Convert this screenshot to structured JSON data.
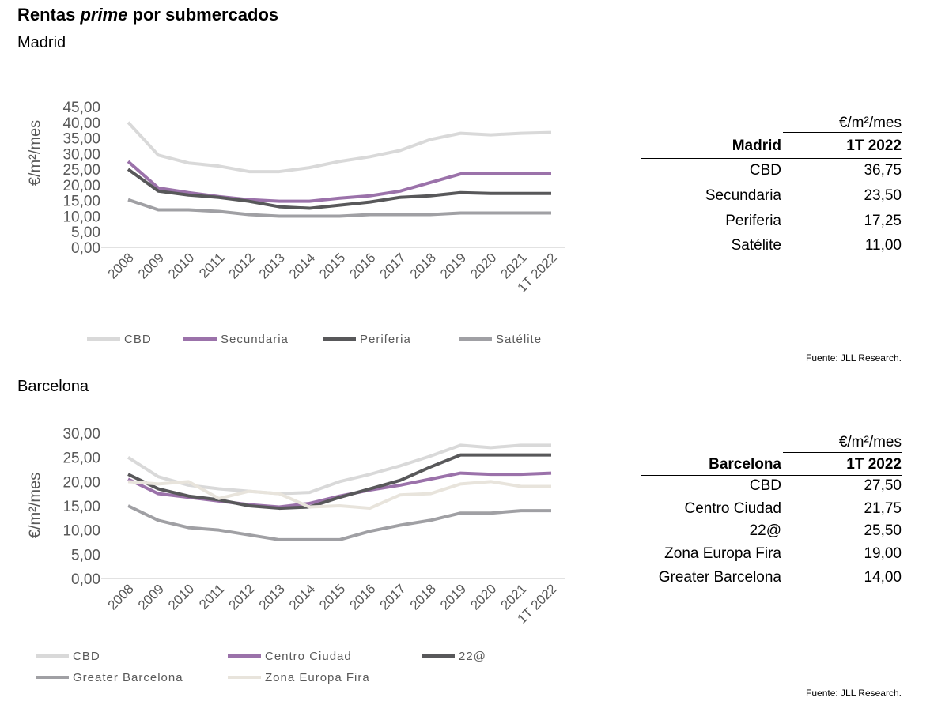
{
  "title_pre": "Rentas ",
  "title_em": "prime",
  "title_post": " por submercados",
  "chart_data": [
    {
      "type": "line",
      "subtitle": "Madrid",
      "ylabel": "€/m²/mes",
      "ylim": [
        0,
        45
      ],
      "yticks": [
        "0,00",
        "5,00",
        "10,00",
        "15,00",
        "20,00",
        "25,00",
        "30,00",
        "35,00",
        "40,00",
        "45,00"
      ],
      "categories": [
        "2008",
        "2009",
        "2010",
        "2011",
        "2012",
        "2013",
        "2014",
        "2015",
        "2016",
        "2017",
        "2018",
        "2019",
        "2020",
        "2021",
        "1T 2022"
      ],
      "legend": "bottom",
      "grid": false,
      "series": [
        {
          "name": "CBD",
          "color": "#d9d9d9",
          "values": [
            40,
            29.5,
            27,
            26,
            24.25,
            24.25,
            25.5,
            27.5,
            29,
            31,
            34.5,
            36.5,
            36,
            36.5,
            36.75
          ]
        },
        {
          "name": "Secundaria",
          "color": "#9b72aa",
          "values": [
            27.5,
            19,
            17.5,
            16.25,
            15.25,
            14.75,
            14.75,
            15.75,
            16.5,
            18,
            20.75,
            23.5,
            23.5,
            23.5,
            23.5
          ]
        },
        {
          "name": "Periferia",
          "color": "#58585a",
          "values": [
            25,
            18,
            16.75,
            16,
            14.75,
            13,
            12.5,
            13.5,
            14.5,
            16,
            16.5,
            17.5,
            17.25,
            17.25,
            17.25
          ]
        },
        {
          "name": "Satélite",
          "color": "#a0a0a4",
          "values": [
            15.25,
            12,
            12,
            11.5,
            10.5,
            10,
            10,
            10,
            10.5,
            10.5,
            10.5,
            11,
            11,
            11,
            11
          ]
        }
      ]
    },
    {
      "type": "line",
      "subtitle": "Barcelona",
      "ylabel": "€/m²/mes",
      "ylim": [
        0,
        30
      ],
      "yticks": [
        "0,00",
        "5,00",
        "10,00",
        "15,00",
        "20,00",
        "25,00",
        "30,00"
      ],
      "categories": [
        "2008",
        "2009",
        "2010",
        "2011",
        "2012",
        "2013",
        "2014",
        "2015",
        "2016",
        "2017",
        "2018",
        "2019",
        "2020",
        "2021",
        "1T 2022"
      ],
      "legend": "bottom",
      "grid": false,
      "series": [
        {
          "name": "CBD",
          "color": "#d9d9d9",
          "values": [
            25,
            21,
            19.25,
            18.5,
            18,
            17.5,
            17.75,
            20,
            21.5,
            23.25,
            25.25,
            27.5,
            27,
            27.5,
            27.5
          ]
        },
        {
          "name": "Centro Ciudad",
          "color": "#9b72aa",
          "values": [
            20.5,
            17.5,
            16.75,
            16,
            15.25,
            14.75,
            15.5,
            17,
            18.25,
            19.25,
            20.5,
            21.75,
            21.5,
            21.5,
            21.75
          ]
        },
        {
          "name": "22@",
          "color": "#58585a",
          "values": [
            21.5,
            18.5,
            17,
            16.25,
            15,
            14.5,
            14.75,
            16.75,
            18.5,
            20.25,
            23,
            25.5,
            25.5,
            25.5,
            25.5
          ]
        },
        {
          "name": "Greater Barcelona",
          "color": "#a0a0a4",
          "values": [
            15,
            12,
            10.5,
            10,
            9,
            8,
            8,
            8,
            9.75,
            11,
            12,
            13.5,
            13.5,
            14,
            14
          ]
        },
        {
          "name": "Zona Europa Fira",
          "color": "#e8e4dc",
          "values": [
            20,
            19.5,
            20,
            16.5,
            18,
            17.5,
            14.75,
            15,
            14.5,
            17.25,
            17.5,
            19.5,
            20,
            19,
            19
          ]
        }
      ]
    }
  ],
  "tables": [
    {
      "unit": "€/m²/mes",
      "head": [
        "Madrid",
        "1T 2022"
      ],
      "rows": [
        [
          "CBD",
          "36,75"
        ],
        [
          "Secundaria",
          "23,50"
        ],
        [
          "Periferia",
          "17,25"
        ],
        [
          "Satélite",
          "11,00"
        ]
      ],
      "source": "Fuente: JLL Research."
    },
    {
      "unit": "€/m²/mes",
      "head": [
        "Barcelona",
        "1T 2022"
      ],
      "rows": [
        [
          "CBD",
          "27,50"
        ],
        [
          "Centro Ciudad",
          "21,75"
        ],
        [
          "22@",
          "25,50"
        ],
        [
          "Zona Europa Fira",
          "19,00"
        ],
        [
          "Greater Barcelona",
          "14,00"
        ]
      ],
      "source": "Fuente: JLL Research."
    }
  ]
}
